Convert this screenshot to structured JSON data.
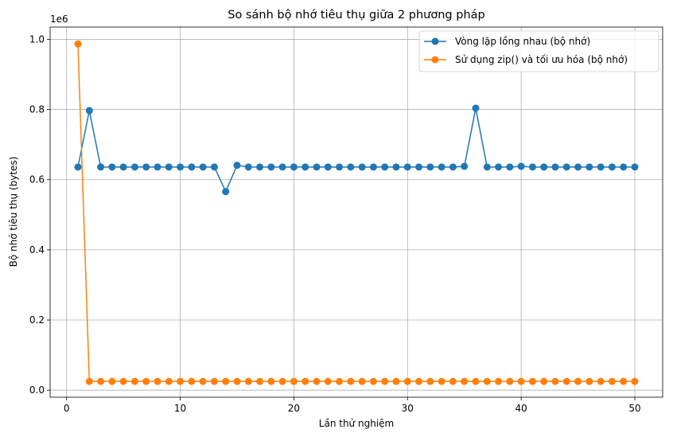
{
  "chart_data": {
    "type": "line",
    "title": "So sánh bộ nhớ tiêu thụ giữa 2 phương pháp",
    "xlabel": "Lần thử nghiệm",
    "ylabel": "Bộ nhớ tiêu thụ (bytes)",
    "y_offset_label": "1e6",
    "xlim": [
      -1.45,
      52.45
    ],
    "ylim": [
      -0.02,
      1.035
    ],
    "x_ticks": [
      0,
      10,
      20,
      30,
      40,
      50
    ],
    "x_tick_labels": [
      "0",
      "10",
      "20",
      "30",
      "40",
      "50"
    ],
    "y_ticks": [
      0.0,
      0.2,
      0.4,
      0.6,
      0.8,
      1.0
    ],
    "y_tick_labels": [
      "0.0",
      "0.2",
      "0.4",
      "0.6",
      "0.8",
      "1.0"
    ],
    "grid": true,
    "legend_position": "top-right",
    "x": [
      1,
      2,
      3,
      4,
      5,
      6,
      7,
      8,
      9,
      10,
      11,
      12,
      13,
      14,
      15,
      16,
      17,
      18,
      19,
      20,
      21,
      22,
      23,
      24,
      25,
      26,
      27,
      28,
      29,
      30,
      31,
      32,
      33,
      34,
      35,
      36,
      37,
      38,
      39,
      40,
      41,
      42,
      43,
      44,
      45,
      46,
      47,
      48,
      49,
      50
    ],
    "series": [
      {
        "name": "Vòng lặp lồng nhau (bộ nhớ)",
        "color": "#1f77b4",
        "values": [
          0.636,
          0.797,
          0.636,
          0.636,
          0.636,
          0.636,
          0.636,
          0.636,
          0.636,
          0.636,
          0.636,
          0.636,
          0.636,
          0.566,
          0.641,
          0.636,
          0.636,
          0.636,
          0.636,
          0.636,
          0.636,
          0.636,
          0.636,
          0.636,
          0.636,
          0.636,
          0.636,
          0.636,
          0.636,
          0.636,
          0.636,
          0.636,
          0.636,
          0.636,
          0.638,
          0.804,
          0.636,
          0.636,
          0.636,
          0.638,
          0.636,
          0.636,
          0.636,
          0.636,
          0.636,
          0.636,
          0.636,
          0.636,
          0.636,
          0.636
        ]
      },
      {
        "name": "Sử dụng zip() và tối ưu hóa (bộ nhớ)",
        "color": "#ff7f0e",
        "values": [
          0.987,
          0.025,
          0.025,
          0.025,
          0.025,
          0.025,
          0.025,
          0.025,
          0.025,
          0.025,
          0.025,
          0.025,
          0.025,
          0.025,
          0.025,
          0.025,
          0.025,
          0.025,
          0.025,
          0.025,
          0.025,
          0.025,
          0.025,
          0.025,
          0.025,
          0.025,
          0.025,
          0.025,
          0.025,
          0.025,
          0.025,
          0.025,
          0.025,
          0.025,
          0.025,
          0.025,
          0.025,
          0.025,
          0.025,
          0.025,
          0.025,
          0.025,
          0.025,
          0.025,
          0.025,
          0.025,
          0.025,
          0.025,
          0.025,
          0.025
        ]
      }
    ]
  }
}
